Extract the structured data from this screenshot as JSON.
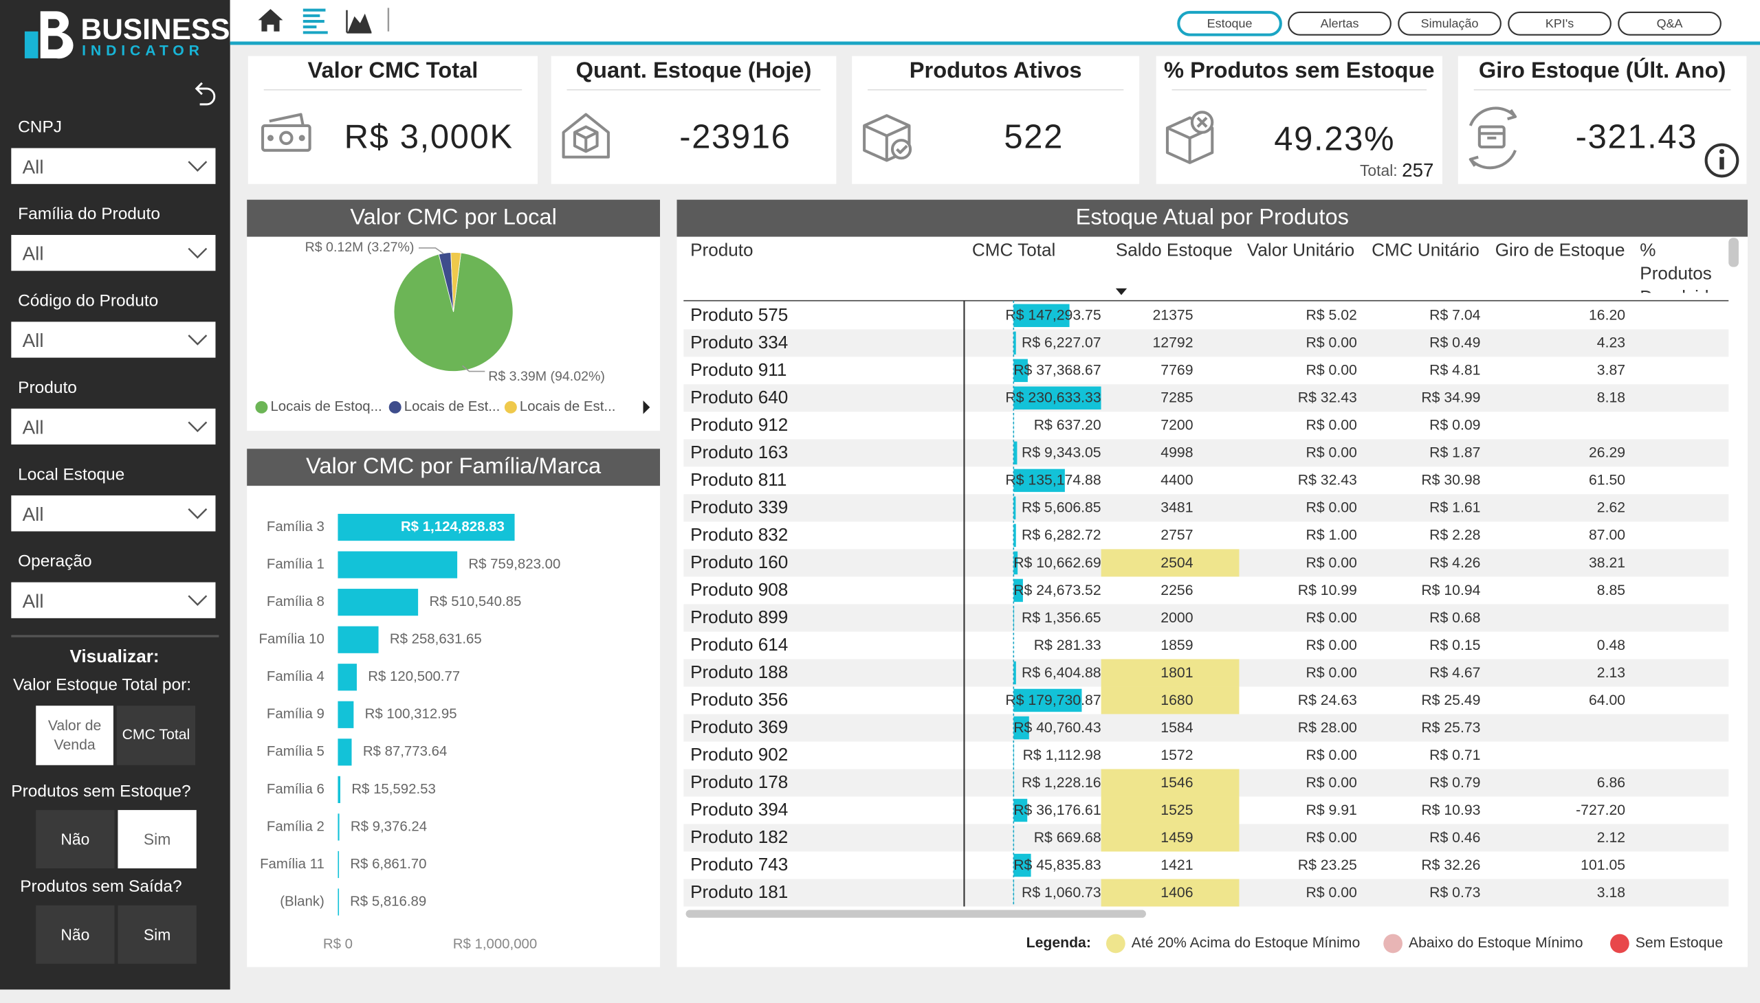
{
  "sidebar": {
    "logo": {
      "line1": "BUSINESS",
      "line2": "INDICATOR"
    },
    "filters": [
      {
        "label": "CNPJ",
        "value": "All"
      },
      {
        "label": "Família do Produto",
        "value": "All"
      },
      {
        "label": "Código do Produto",
        "value": "All"
      },
      {
        "label": "Produto",
        "value": "All"
      },
      {
        "label": "Local Estoque",
        "value": "All"
      },
      {
        "label": "Operação",
        "value": "All"
      }
    ],
    "visualizar": {
      "title": "Visualizar:",
      "subtitle": "Valor Estoque Total por:",
      "options": [
        "Valor de Venda",
        "CMC Total"
      ],
      "selected": 0
    },
    "toggles": [
      {
        "label": "Produtos sem Estoque?",
        "options": [
          "Não",
          "Sim"
        ],
        "selected": 1
      },
      {
        "label": "Produtos sem Saída?",
        "options": [
          "Não",
          "Sim"
        ],
        "selected": null
      }
    ]
  },
  "nav": {
    "tabs": [
      "Estoque",
      "Alertas",
      "Simulação",
      "KPI's",
      "Q&A"
    ],
    "active": 0
  },
  "kpis": [
    {
      "title": "Valor CMC Total",
      "value": "R$ 3,000K"
    },
    {
      "title": "Quant. Estoque (Hoje)",
      "value": -23916
    },
    {
      "title": "Produtos Ativos",
      "value": 522
    },
    {
      "title": "% Produtos sem Estoque",
      "value": "49.23%",
      "total_label": "Total:",
      "total": 257
    },
    {
      "title": "Giro Estoque (Últ. Ano)",
      "value": -321.43
    }
  ],
  "pie_chart": {
    "type": "pie",
    "title": "Valor CMC por Local",
    "series": [
      {
        "name": "Locais de Estoq...",
        "color": "#6cb556",
        "value": 94.02,
        "value_label": "R$ 3.39M (94.02%)"
      },
      {
        "name": "Locais de Est...",
        "color": "#3e4d8c",
        "value": 3.27,
        "value_label": "R$ 0.12M (3.27%)"
      },
      {
        "name": "Locais de Est...",
        "color": "#efc94c",
        "value": 2.71
      }
    ]
  },
  "bar_chart": {
    "type": "bar",
    "orientation": "horizontal",
    "title": "Valor CMC por Família/Marca",
    "color": "#13c2d8",
    "categories": [
      "Família 3",
      "Família 1",
      "Família 8",
      "Família 10",
      "Família 4",
      "Família 9",
      "Família 5",
      "Família 6",
      "Família 2",
      "Família 11",
      "(Blank)"
    ],
    "values": [
      1124828.83,
      759823.0,
      510540.85,
      258631.65,
      120500.77,
      100312.95,
      87773.64,
      15592.53,
      9376.24,
      6861.7,
      5816.89
    ],
    "value_labels": [
      "R$ 1,124,828.83",
      "R$ 759,823.00",
      "R$ 510,540.85",
      "R$ 258,631.65",
      "R$ 120,500.77",
      "R$ 100,312.95",
      "R$ 87,773.64",
      "R$ 15,592.53",
      "R$ 9,376.24",
      "R$ 6,861.70",
      "R$ 5,816.89"
    ],
    "xlim": [
      0,
      2000000
    ],
    "xticks": [
      {
        "value": 0,
        "label": "R$ 0"
      },
      {
        "value": 1000000,
        "label": "R$ 1,000,000"
      }
    ]
  },
  "table": {
    "title": "Estoque Atual por Produtos",
    "bar_color": "#13c2d8",
    "columns": [
      "Produto",
      "CMC Total",
      "Saldo Estoque",
      "Valor Unitário",
      "CMC Unitário",
      "Giro de Estoque",
      "% Produtos Devolvidos"
    ],
    "rows": [
      {
        "produto": "Produto 575",
        "cmc_total": 147293.75,
        "cmc_label": "R$ 147,293.75",
        "saldo": 21375,
        "valor_unitario": "R$ 5.02",
        "cmc_unitario": "R$ 7.04",
        "giro": "16.20"
      },
      {
        "produto": "Produto 334",
        "cmc_total": 6227.07,
        "cmc_label": "R$ 6,227.07",
        "saldo": 12792,
        "valor_unitario": "R$ 0.00",
        "cmc_unitario": "R$ 0.49",
        "giro": "4.23"
      },
      {
        "produto": "Produto 911",
        "cmc_total": 37368.67,
        "cmc_label": "R$ 37,368.67",
        "saldo": 7769,
        "valor_unitario": "R$ 0.00",
        "cmc_unitario": "R$ 4.81",
        "giro": "3.87"
      },
      {
        "produto": "Produto 640",
        "cmc_total": 230633.33,
        "cmc_label": "R$ 230,633.33",
        "saldo": 7285,
        "valor_unitario": "R$ 32.43",
        "cmc_unitario": "R$ 34.99",
        "giro": "8.18"
      },
      {
        "produto": "Produto 912",
        "cmc_total": 637.2,
        "cmc_label": "R$ 637.20",
        "saldo": 7200,
        "valor_unitario": "R$ 0.00",
        "cmc_unitario": "R$ 0.09"
      },
      {
        "produto": "Produto 163",
        "cmc_total": 9343.05,
        "cmc_label": "R$ 9,343.05",
        "saldo": 4998,
        "valor_unitario": "R$ 0.00",
        "cmc_unitario": "R$ 1.87",
        "giro": "26.29"
      },
      {
        "produto": "Produto 811",
        "cmc_total": 135174.88,
        "cmc_label": "R$ 135,174.88",
        "saldo": 4400,
        "valor_unitario": "R$ 32.43",
        "cmc_unitario": "R$ 30.98",
        "giro": "61.50"
      },
      {
        "produto": "Produto 339",
        "cmc_total": 5606.85,
        "cmc_label": "R$ 5,606.85",
        "saldo": 3481,
        "valor_unitario": "R$ 0.00",
        "cmc_unitario": "R$ 1.61",
        "giro": "2.62"
      },
      {
        "produto": "Produto 832",
        "cmc_total": 6282.72,
        "cmc_label": "R$ 6,282.72",
        "saldo": 2757,
        "valor_unitario": "R$ 1.00",
        "cmc_unitario": "R$ 2.28",
        "giro": "87.00"
      },
      {
        "produto": "Produto 160",
        "cmc_total": 10662.69,
        "cmc_label": "R$ 10,662.69",
        "saldo": 2504,
        "saldo_color": "#efe58d",
        "valor_unitario": "R$ 0.00",
        "cmc_unitario": "R$ 4.26",
        "giro": "38.21"
      },
      {
        "produto": "Produto 908",
        "cmc_total": 24673.52,
        "cmc_label": "R$ 24,673.52",
        "saldo": 2256,
        "valor_unitario": "R$ 10.99",
        "cmc_unitario": "R$ 10.94",
        "giro": "8.85"
      },
      {
        "produto": "Produto 899",
        "cmc_total": 1356.65,
        "cmc_label": "R$ 1,356.65",
        "saldo": 2000,
        "valor_unitario": "R$ 0.00",
        "cmc_unitario": "R$ 0.68"
      },
      {
        "produto": "Produto 614",
        "cmc_total": 281.33,
        "cmc_label": "R$ 281.33",
        "saldo": 1859,
        "valor_unitario": "R$ 0.00",
        "cmc_unitario": "R$ 0.15",
        "giro": "0.48"
      },
      {
        "produto": "Produto 188",
        "cmc_total": 6404.88,
        "cmc_label": "R$ 6,404.88",
        "saldo": 1801,
        "saldo_color": "#efe58d",
        "valor_unitario": "R$ 0.00",
        "cmc_unitario": "R$ 4.67",
        "giro": "2.13"
      },
      {
        "produto": "Produto 356",
        "cmc_total": 179730.87,
        "cmc_label": "R$ 179,730.87",
        "saldo": 1680,
        "saldo_color": "#efe58d",
        "valor_unitario": "R$ 24.63",
        "cmc_unitario": "R$ 25.49",
        "giro": "64.00"
      },
      {
        "produto": "Produto 369",
        "cmc_total": 40760.43,
        "cmc_label": "R$ 40,760.43",
        "saldo": 1584,
        "valor_unitario": "R$ 28.00",
        "cmc_unitario": "R$ 25.73"
      },
      {
        "produto": "Produto 902",
        "cmc_total": 1112.98,
        "cmc_label": "R$ 1,112.98",
        "saldo": 1572,
        "valor_unitario": "R$ 0.00",
        "cmc_unitario": "R$ 0.71"
      },
      {
        "produto": "Produto 178",
        "cmc_total": 1228.16,
        "cmc_label": "R$ 1,228.16",
        "saldo": 1546,
        "saldo_color": "#efe58d",
        "valor_unitario": "R$ 0.00",
        "cmc_unitario": "R$ 0.79",
        "giro": "6.86"
      },
      {
        "produto": "Produto 394",
        "cmc_total": 36176.61,
        "cmc_label": "R$ 36,176.61",
        "saldo": 1525,
        "saldo_color": "#efe58d",
        "valor_unitario": "R$ 9.91",
        "cmc_unitario": "R$ 10.93",
        "giro": "-727.20"
      },
      {
        "produto": "Produto 182",
        "cmc_total": 669.68,
        "cmc_label": "R$ 669.68",
        "saldo": 1459,
        "saldo_color": "#efe58d",
        "valor_unitario": "R$ 0.00",
        "cmc_unitario": "R$ 0.46",
        "giro": "2.12"
      },
      {
        "produto": "Produto 743",
        "cmc_total": 45835.83,
        "cmc_label": "R$ 45,835.83",
        "saldo": 1421,
        "valor_unitario": "R$ 23.25",
        "cmc_unitario": "R$ 32.26",
        "giro": "101.05"
      },
      {
        "produto": "Produto 181",
        "cmc_total": 1060.73,
        "cmc_label": "R$ 1,060.73",
        "saldo": 1406,
        "saldo_color": "#efe58d",
        "valor_unitario": "R$ 0.00",
        "cmc_unitario": "R$ 0.73",
        "giro": "3.18"
      }
    ]
  },
  "legend": {
    "title": "Legenda:",
    "items": [
      {
        "label": "Até 20% Acima do Estoque Mínimo",
        "color": "#efe58d"
      },
      {
        "label": "Abaixo do Estoque Mínimo",
        "color": "#e8b5b5"
      },
      {
        "label": "Sem Estoque",
        "color": "#e8474a"
      }
    ]
  }
}
